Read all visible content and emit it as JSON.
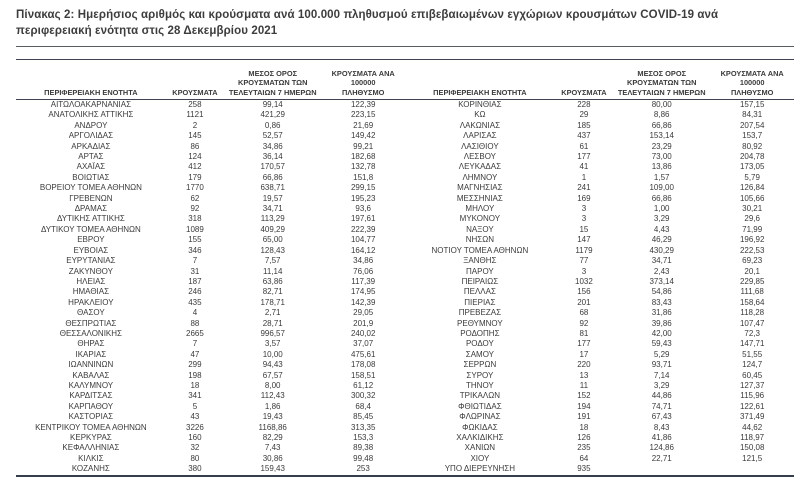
{
  "document": {
    "title": "Πίνακας 2: Ημερήσιος αριθμός και κρούσματα ανά 100.000 πληθυσμού επιβεβαιωμένων εγχώριων κρουσμάτων COVID-19 ανά περιφερειακή ενότητα στις 28 Δεκεμβρίου 2021"
  },
  "colors": {
    "rule": "#3d4451",
    "text": "#3b3b3b",
    "background": "#ffffff"
  },
  "table": {
    "headers": {
      "region": "ΠΕΡΙΦΕΡΕΙΑΚΗ ΕΝΟΤΗΤΑ",
      "cases": "ΚΡΟΥΣΜΑΤΑ",
      "avg7": "ΜΕΣΟΣ ΟΡΟΣ\nΚΡΟΥΣΜΑΤΩΝ ΤΩΝ\nΤΕΛΕΥΤΑΙΩΝ 7 ΗΜΕΡΩΝ",
      "per100k": "ΚΡΟΥΣΜΑΤΑ ΑΝΑ 100000\nΠΛΗΘΥΣΜΟ"
    },
    "rows_left": [
      [
        "ΑΙΤΩΛΟΑΚΑΡΝΑΝΙΑΣ",
        "258",
        "99,14",
        "122,39"
      ],
      [
        "ΑΝΑΤΟΛΙΚΗΣ ΑΤΤΙΚΗΣ",
        "1121",
        "421,29",
        "223,15"
      ],
      [
        "ΑΝΔΡΟΥ",
        "2",
        "0,86",
        "21,69"
      ],
      [
        "ΑΡΓΟΛΙΔΑΣ",
        "145",
        "52,57",
        "149,42"
      ],
      [
        "ΑΡΚΑΔΙΑΣ",
        "86",
        "34,86",
        "99,21"
      ],
      [
        "ΑΡΤΑΣ",
        "124",
        "36,14",
        "182,68"
      ],
      [
        "ΑΧΑΪΑΣ",
        "412",
        "170,57",
        "132,78"
      ],
      [
        "ΒΟΙΩΤΙΑΣ",
        "179",
        "66,86",
        "151,8"
      ],
      [
        "ΒΟΡΕΙΟΥ ΤΟΜΕΑ ΑΘΗΝΩΝ",
        "1770",
        "638,71",
        "299,15"
      ],
      [
        "ΓΡΕΒΕΝΩΝ",
        "62",
        "19,57",
        "195,23"
      ],
      [
        "ΔΡΑΜΑΣ",
        "92",
        "34,71",
        "93,6"
      ],
      [
        "ΔΥΤΙΚΗΣ ΑΤΤΙΚΗΣ",
        "318",
        "113,29",
        "197,61"
      ],
      [
        "ΔΥΤΙΚΟΥ ΤΟΜΕΑ ΑΘΗΝΩΝ",
        "1089",
        "409,29",
        "222,39"
      ],
      [
        "ΕΒΡΟΥ",
        "155",
        "65,00",
        "104,77"
      ],
      [
        "ΕΥΒΟΙΑΣ",
        "346",
        "128,43",
        "164,12"
      ],
      [
        "ΕΥΡΥΤΑΝΙΑΣ",
        "7",
        "7,57",
        "34,86"
      ],
      [
        "ΖΑΚΥΝΘΟΥ",
        "31",
        "11,14",
        "76,06"
      ],
      [
        "ΗΛΕΙΑΣ",
        "187",
        "63,86",
        "117,39"
      ],
      [
        "ΗΜΑΘΙΑΣ",
        "246",
        "82,71",
        "174,95"
      ],
      [
        "ΗΡΑΚΛΕΙΟΥ",
        "435",
        "178,71",
        "142,39"
      ],
      [
        "ΘΑΣΟΥ",
        "4",
        "2,71",
        "29,05"
      ],
      [
        "ΘΕΣΠΡΩΤΙΑΣ",
        "88",
        "28,71",
        "201,9"
      ],
      [
        "ΘΕΣΣΑΛΟΝΙΚΗΣ",
        "2665",
        "996,57",
        "240,02"
      ],
      [
        "ΘΗΡΑΣ",
        "7",
        "3,57",
        "37,07"
      ],
      [
        "ΙΚΑΡΙΑΣ",
        "47",
        "10,00",
        "475,61"
      ],
      [
        "ΙΩΑΝΝΙΝΩΝ",
        "299",
        "94,43",
        "178,08"
      ],
      [
        "ΚΑΒΑΛΑΣ",
        "198",
        "67,57",
        "158,51"
      ],
      [
        "ΚΑΛΥΜΝΟΥ",
        "18",
        "8,00",
        "61,12"
      ],
      [
        "ΚΑΡΔΙΤΣΑΣ",
        "341",
        "112,43",
        "300,32"
      ],
      [
        "ΚΑΡΠΑΘΟΥ",
        "5",
        "1,86",
        "68,4"
      ],
      [
        "ΚΑΣΤΟΡΙΑΣ",
        "43",
        "19,43",
        "85,45"
      ],
      [
        "ΚΕΝΤΡΙΚΟΥ ΤΟΜΕΑ ΑΘΗΝΩΝ",
        "3226",
        "1168,86",
        "313,35"
      ],
      [
        "ΚΕΡΚΥΡΑΣ",
        "160",
        "82,29",
        "153,3"
      ],
      [
        "ΚΕΦΑΛΛΗΝΙΑΣ",
        "32",
        "7,43",
        "89,38"
      ],
      [
        "ΚΙΛΚΙΣ",
        "80",
        "30,86",
        "99,48"
      ],
      [
        "ΚΟΖΑΝΗΣ",
        "380",
        "159,43",
        "253"
      ]
    ],
    "rows_right": [
      [
        "ΚΟΡΙΝΘΙΑΣ",
        "228",
        "80,00",
        "157,15"
      ],
      [
        "ΚΩ",
        "29",
        "8,86",
        "84,31"
      ],
      [
        "ΛΑΚΩΝΙΑΣ",
        "185",
        "66,86",
        "207,54"
      ],
      [
        "ΛΑΡΙΣΑΣ",
        "437",
        "153,14",
        "153,7"
      ],
      [
        "ΛΑΣΙΘΙΟΥ",
        "61",
        "23,29",
        "80,92"
      ],
      [
        "ΛΕΣΒΟΥ",
        "177",
        "73,00",
        "204,78"
      ],
      [
        "ΛΕΥΚΑΔΑΣ",
        "41",
        "13,86",
        "173,05"
      ],
      [
        "ΛΗΜΝΟΥ",
        "1",
        "1,57",
        "5,79"
      ],
      [
        "ΜΑΓΝΗΣΙΑΣ",
        "241",
        "109,00",
        "126,84"
      ],
      [
        "ΜΕΣΣΗΝΙΑΣ",
        "169",
        "66,86",
        "105,66"
      ],
      [
        "ΜΗΛΟΥ",
        "3",
        "1,00",
        "30,21"
      ],
      [
        "ΜΥΚΟΝΟΥ",
        "3",
        "3,29",
        "29,6"
      ],
      [
        "ΝΑΞΟΥ",
        "15",
        "4,43",
        "71,99"
      ],
      [
        "ΝΗΣΩΝ",
        "147",
        "46,29",
        "196,92"
      ],
      [
        "ΝΟΤΙΟΥ ΤΟΜΕΑ ΑΘΗΝΩΝ",
        "1179",
        "430,29",
        "222,53"
      ],
      [
        "ΞΑΝΘΗΣ",
        "77",
        "34,71",
        "69,23"
      ],
      [
        "ΠΑΡΟΥ",
        "3",
        "2,43",
        "20,1"
      ],
      [
        "ΠΕΙΡΑΙΩΣ",
        "1032",
        "373,14",
        "229,85"
      ],
      [
        "ΠΕΛΛΑΣ",
        "156",
        "54,86",
        "111,68"
      ],
      [
        "ΠΙΕΡΙΑΣ",
        "201",
        "83,43",
        "158,64"
      ],
      [
        "ΠΡΕΒΕΖΑΣ",
        "68",
        "31,86",
        "118,28"
      ],
      [
        "ΡΕΘΥΜΝΟΥ",
        "92",
        "39,86",
        "107,47"
      ],
      [
        "ΡΟΔΟΠΗΣ",
        "81",
        "42,00",
        "72,3"
      ],
      [
        "ΡΟΔΟΥ",
        "177",
        "59,43",
        "147,71"
      ],
      [
        "ΣΑΜΟΥ",
        "17",
        "5,29",
        "51,55"
      ],
      [
        "ΣΕΡΡΩΝ",
        "220",
        "93,71",
        "124,7"
      ],
      [
        "ΣΥΡΟΥ",
        "13",
        "7,14",
        "60,45"
      ],
      [
        "ΤΗΝΟΥ",
        "11",
        "3,29",
        "127,37"
      ],
      [
        "ΤΡΙΚΑΛΩΝ",
        "152",
        "44,86",
        "115,96"
      ],
      [
        "ΦΘΙΩΤΙΔΑΣ",
        "194",
        "74,71",
        "122,61"
      ],
      [
        "ΦΛΩΡΙΝΑΣ",
        "191",
        "67,43",
        "371,49"
      ],
      [
        "ΦΩΚΙΔΑΣ",
        "18",
        "8,43",
        "44,62"
      ],
      [
        "ΧΑΛΚΙΔΙΚΗΣ",
        "126",
        "41,86",
        "118,97"
      ],
      [
        "ΧΑΝΙΩΝ",
        "235",
        "124,86",
        "150,08"
      ],
      [
        "ΧΙΟΥ",
        "64",
        "22,71",
        "121,5"
      ],
      [
        "ΥΠΟ ΔΙΕΡΕΥΝΗΣΗ",
        "935",
        "",
        ""
      ]
    ]
  }
}
